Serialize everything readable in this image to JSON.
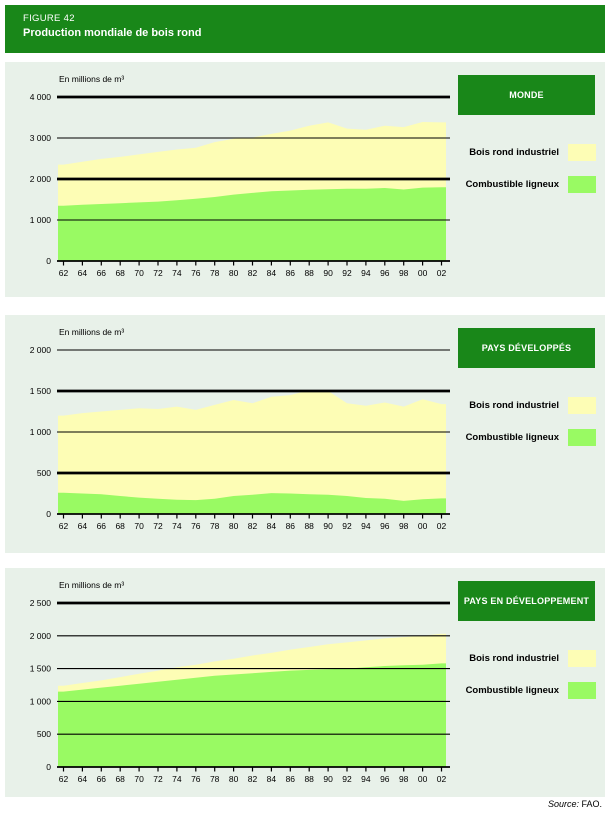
{
  "figure": {
    "label": "FIGURE 42",
    "title": "Production mondiale de bois rond"
  },
  "source": {
    "prefix": "Source:",
    "text": " FAO."
  },
  "colors": {
    "header_green": "#198719",
    "panel_bg": "#e8f1e9",
    "industrial_yellow": "#fdfdb5",
    "fuelwood_green": "#99fa63",
    "gridline": "#000000",
    "text": "#000000",
    "page_background": "#ffffff"
  },
  "chart_data": [
    {
      "type": "area",
      "stacked": true,
      "title": "MONDE",
      "unit_label": "En millions de m³",
      "x": [
        1962,
        1964,
        1966,
        1968,
        1970,
        1972,
        1974,
        1976,
        1978,
        1980,
        1982,
        1984,
        1986,
        1988,
        1990,
        1992,
        1994,
        1996,
        1998,
        2000,
        2002
      ],
      "x_tick_labels": [
        "62",
        "64",
        "66",
        "68",
        "70",
        "72",
        "74",
        "76",
        "78",
        "80",
        "82",
        "84",
        "86",
        "88",
        "90",
        "92",
        "94",
        "96",
        "98",
        "00",
        "02"
      ],
      "series": [
        {
          "name": "Combustible ligneux",
          "color": "#99fa63",
          "values": [
            1350,
            1370,
            1390,
            1410,
            1430,
            1450,
            1480,
            1520,
            1560,
            1620,
            1660,
            1700,
            1720,
            1740,
            1750,
            1760,
            1760,
            1780,
            1745,
            1790,
            1800
          ]
        },
        {
          "name": "Bois rond industriel",
          "color": "#fdfdb5",
          "values": [
            1000,
            1050,
            1100,
            1130,
            1170,
            1210,
            1240,
            1240,
            1340,
            1360,
            1350,
            1400,
            1460,
            1560,
            1630,
            1470,
            1440,
            1520,
            1520,
            1600,
            1580
          ]
        }
      ],
      "ylim": [
        0,
        4000
      ],
      "y_ticks": [
        0,
        1000,
        2000,
        3000,
        4000
      ],
      "y_tick_labels": [
        "0",
        "1 000",
        "2 000",
        "3 000",
        "4 000"
      ],
      "bold_gridlines": [
        2000,
        4000
      ],
      "grid": true,
      "legend_position": "right"
    },
    {
      "type": "area",
      "stacked": true,
      "title": "PAYS DÉVELOPPÉS",
      "unit_label": "En millions de m³",
      "x": [
        1962,
        1964,
        1966,
        1968,
        1970,
        1972,
        1974,
        1976,
        1978,
        1980,
        1982,
        1984,
        1986,
        1988,
        1990,
        1992,
        1994,
        1996,
        1998,
        2000,
        2002
      ],
      "x_tick_labels": [
        "62",
        "64",
        "66",
        "68",
        "70",
        "72",
        "74",
        "76",
        "78",
        "80",
        "82",
        "84",
        "86",
        "88",
        "90",
        "92",
        "94",
        "96",
        "98",
        "00",
        "02"
      ],
      "series": [
        {
          "name": "Combustible ligneux",
          "color": "#99fa63",
          "values": [
            260,
            250,
            240,
            220,
            200,
            185,
            175,
            170,
            185,
            220,
            235,
            255,
            250,
            240,
            235,
            220,
            195,
            185,
            160,
            180,
            190
          ]
        },
        {
          "name": "Bois rond industriel",
          "color": "#fdfdb5",
          "values": [
            940,
            980,
            1010,
            1050,
            1090,
            1095,
            1135,
            1100,
            1145,
            1170,
            1115,
            1175,
            1200,
            1270,
            1265,
            1130,
            1125,
            1175,
            1150,
            1220,
            1150
          ]
        }
      ],
      "ylim": [
        0,
        2000
      ],
      "y_ticks": [
        0,
        500,
        1000,
        1500,
        2000
      ],
      "y_tick_labels": [
        "0",
        "500",
        "1 000",
        "1 500",
        "2 000"
      ],
      "bold_gridlines": [
        500,
        1500
      ],
      "grid": true,
      "legend_position": "right"
    },
    {
      "type": "area",
      "stacked": true,
      "title": "PAYS EN DÉVELOPPEMENT",
      "unit_label": "En millions de m³",
      "x": [
        1962,
        1964,
        1966,
        1968,
        1970,
        1972,
        1974,
        1976,
        1978,
        1980,
        1982,
        1984,
        1986,
        1988,
        1990,
        1992,
        1994,
        1996,
        1998,
        2000,
        2002
      ],
      "x_tick_labels": [
        "62",
        "64",
        "66",
        "68",
        "70",
        "72",
        "74",
        "76",
        "78",
        "80",
        "82",
        "84",
        "86",
        "88",
        "90",
        "92",
        "94",
        "96",
        "98",
        "00",
        "02"
      ],
      "series": [
        {
          "name": "Combustible ligneux",
          "color": "#99fa63",
          "values": [
            1150,
            1180,
            1210,
            1240,
            1270,
            1300,
            1330,
            1360,
            1390,
            1410,
            1430,
            1450,
            1470,
            1480,
            1490,
            1500,
            1520,
            1540,
            1550,
            1560,
            1580
          ]
        },
        {
          "name": "Bois rond industriel",
          "color": "#fdfdb5",
          "values": [
            90,
            100,
            110,
            130,
            150,
            170,
            190,
            200,
            220,
            240,
            270,
            290,
            320,
            350,
            380,
            400,
            410,
            420,
            430,
            440,
            450
          ]
        }
      ],
      "ylim": [
        0,
        2500
      ],
      "y_ticks": [
        0,
        500,
        1000,
        1500,
        2000,
        2500
      ],
      "y_tick_labels": [
        "0",
        "500",
        "1 000",
        "1 500",
        "2 000",
        "2 500"
      ],
      "bold_gridlines": [
        2500
      ],
      "grid": true,
      "legend_position": "right"
    }
  ]
}
